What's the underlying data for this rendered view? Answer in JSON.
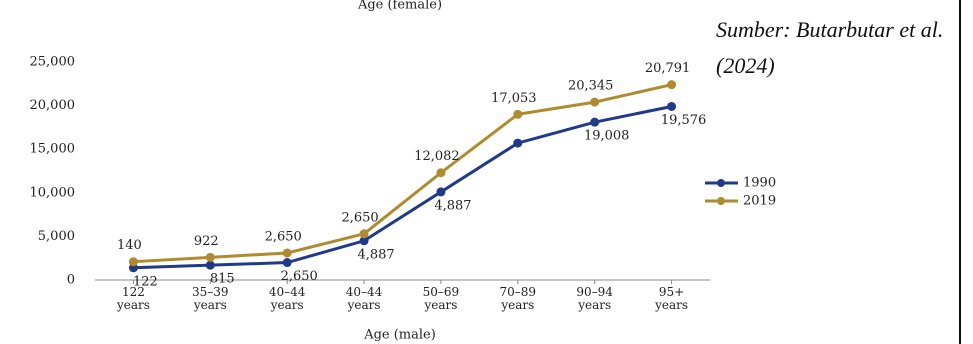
{
  "chart_data": {
    "type": "line",
    "title": "Age (female)",
    "x_label": "Age (male)",
    "source": "Sumber: Butarbutar et al. (2024)",
    "categories": [
      "122 years",
      "35–39 years",
      "40–44 years",
      "40–44 years",
      "50–69 years",
      "70–89 years",
      "90–94 years",
      "95+ years"
    ],
    "series": [
      {
        "name": "1990",
        "color": "#1f3a8a",
        "values": [
          1400,
          1700,
          2000,
          4500,
          10100,
          15700,
          18100,
          19900
        ],
        "annotations": [
          "122",
          "815",
          "2,650",
          "4,887",
          "4,887",
          null,
          "19,008",
          "19,576"
        ]
      },
      {
        "name": "2019",
        "color": "#b08a2e",
        "values": [
          2100,
          2600,
          3100,
          5300,
          12300,
          19000,
          20400,
          22400
        ],
        "annotations": [
          "140",
          "922",
          "2,650",
          "2,650",
          "12,082",
          "17,053",
          "20,345",
          "20,791"
        ]
      }
    ],
    "ylim": [
      0,
      25000
    ],
    "yticks": [
      0,
      {
        "value": 5000,
        "label": "5,000"
      },
      {
        "value": 10000,
        "label": "10,000"
      },
      {
        "value": 15000,
        "label": "15,000"
      },
      {
        "value": 20000,
        "label": "20,000"
      },
      {
        "value": 25000,
        "label": "25,000"
      }
    ],
    "legend": "right",
    "grid": false
  }
}
